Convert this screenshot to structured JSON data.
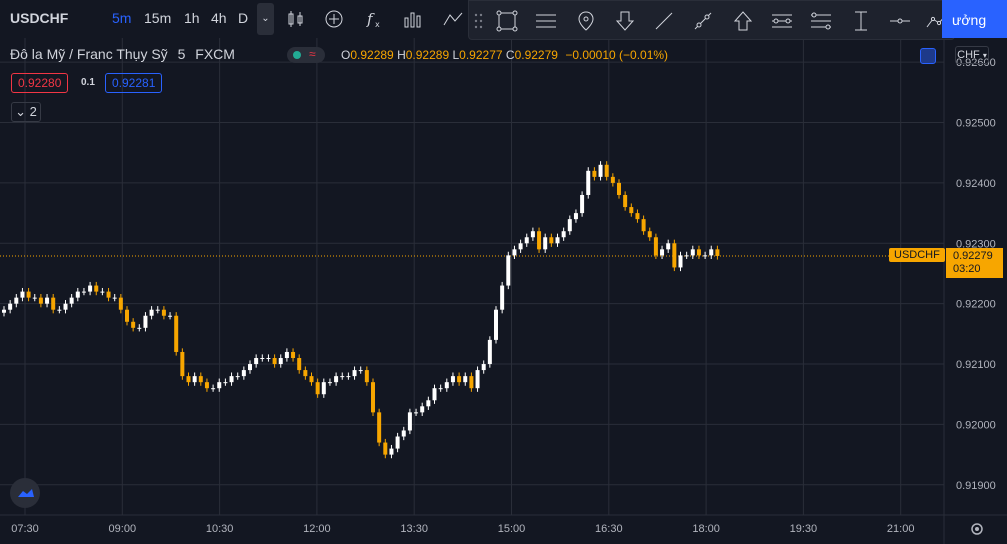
{
  "toolbar": {
    "symbol": "USDCHF",
    "timeframes": [
      "5m",
      "15m",
      "1h",
      "4h",
      "D"
    ],
    "active_timeframe": "5m",
    "right_button": "ưởng"
  },
  "legend": {
    "title": "Đô la Mỹ / Franc Thụy Sỹ",
    "interval": "5",
    "exchange": "FXCM",
    "open_label": "O",
    "open": "0.92289",
    "high_label": "H",
    "high": "0.92289",
    "low_label": "L",
    "low": "0.92277",
    "close_label": "C",
    "close": "0.92279",
    "change": "−0.00010 (−0.01%)",
    "bid": "0.92280",
    "spread": "0.1",
    "ask": "0.92281",
    "indicators_count": "2"
  },
  "axis": {
    "currency": "CHF",
    "last_label": "USDCHF",
    "last_price": "0.92279",
    "countdown": "03:20"
  },
  "colors": {
    "up": "#ffffff",
    "down": "#f7a600",
    "background": "#131722",
    "grid": "#2a2e39",
    "accent": "#2962ff"
  },
  "chart_data": {
    "type": "candlestick",
    "ylim": [
      0.9185,
      0.9264
    ],
    "y_ticks": [
      "0.92600",
      "0.92500",
      "0.92400",
      "0.92300",
      "0.92200",
      "0.92100",
      "0.92000",
      "0.91900"
    ],
    "y_tick_values": [
      0.926,
      0.925,
      0.924,
      0.923,
      0.922,
      0.921,
      0.92,
      0.919
    ],
    "x_ticks": [
      "07:30",
      "09:00",
      "10:30",
      "12:00",
      "13:30",
      "15:00",
      "16:30",
      "18:00",
      "19:30",
      "21:00"
    ],
    "close_series": [
      0.9219,
      0.922,
      0.9221,
      0.9222,
      0.9221,
      0.9221,
      0.922,
      0.9221,
      0.9219,
      0.9219,
      0.922,
      0.9221,
      0.9222,
      0.9222,
      0.9223,
      0.9222,
      0.9222,
      0.9221,
      0.9221,
      0.9219,
      0.9217,
      0.9216,
      0.9216,
      0.9218,
      0.9219,
      0.9219,
      0.9218,
      0.9218,
      0.9212,
      0.9208,
      0.9207,
      0.9208,
      0.9207,
      0.9206,
      0.9206,
      0.9207,
      0.9207,
      0.9208,
      0.9208,
      0.9209,
      0.921,
      0.9211,
      0.9211,
      0.9211,
      0.921,
      0.9211,
      0.9212,
      0.9211,
      0.9209,
      0.9208,
      0.9207,
      0.9205,
      0.9207,
      0.9207,
      0.9208,
      0.9208,
      0.9208,
      0.9209,
      0.9209,
      0.9207,
      0.9202,
      0.9197,
      0.9195,
      0.9196,
      0.9198,
      0.9199,
      0.9202,
      0.9202,
      0.9203,
      0.9204,
      0.9206,
      0.9206,
      0.9207,
      0.9208,
      0.9207,
      0.9208,
      0.9206,
      0.9209,
      0.921,
      0.9214,
      0.9219,
      0.9223,
      0.9228,
      0.9229,
      0.923,
      0.9231,
      0.9232,
      0.9229,
      0.9231,
      0.923,
      0.9231,
      0.9232,
      0.9234,
      0.9235,
      0.9238,
      0.9242,
      0.9241,
      0.9243,
      0.9241,
      0.924,
      0.9238,
      0.9236,
      0.9235,
      0.9234,
      0.9232,
      0.9231,
      0.9228,
      0.9229,
      0.923,
      0.9226,
      0.9228,
      0.9228,
      0.9229,
      0.9228,
      0.9228,
      0.9229,
      0.92279
    ]
  }
}
